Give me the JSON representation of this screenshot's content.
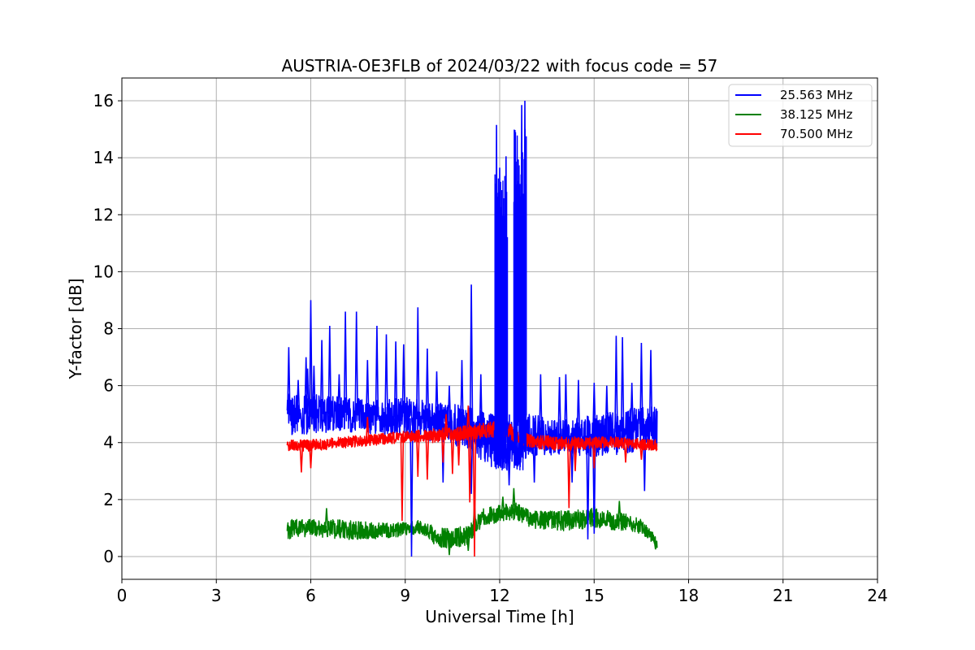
{
  "chart_data": {
    "type": "line",
    "title": "AUSTRIA-OE3FLB of 2024/03/22 with focus code = 57",
    "xlabel": "Universal Time [h]",
    "ylabel": "Y-factor [dB]",
    "xlim": [
      0,
      24
    ],
    "ylim": [
      -0.8,
      16.8
    ],
    "xticks": [
      0,
      3,
      6,
      9,
      12,
      15,
      18,
      21,
      24
    ],
    "yticks": [
      0,
      2,
      4,
      6,
      8,
      10,
      12,
      14,
      16
    ],
    "grid": true,
    "legend_position": "top-right",
    "series": [
      {
        "name": "25.563 MHz",
        "color": "#0000ff",
        "x_range": [
          5.25,
          17.0
        ],
        "band": [
          [
            5.25,
            4.2,
            5.8
          ],
          [
            6,
            4.3,
            5.7
          ],
          [
            7,
            4.4,
            5.6
          ],
          [
            8,
            4.3,
            5.5
          ],
          [
            9,
            4.2,
            5.6
          ],
          [
            10,
            4.0,
            5.4
          ],
          [
            11,
            3.8,
            5.3
          ],
          [
            11.8,
            3.0,
            5.0
          ],
          [
            12.5,
            3.0,
            5.0
          ],
          [
            13,
            3.5,
            5.0
          ],
          [
            14,
            3.6,
            4.8
          ],
          [
            15,
            3.5,
            5.0
          ],
          [
            16,
            3.6,
            5.2
          ],
          [
            17,
            3.8,
            5.3
          ]
        ],
        "spikes": [
          [
            5.3,
            7.35
          ],
          [
            5.6,
            6.2
          ],
          [
            5.85,
            7.0
          ],
          [
            5.9,
            6.6
          ],
          [
            6.0,
            9.0
          ],
          [
            6.1,
            6.7
          ],
          [
            6.35,
            7.6
          ],
          [
            6.6,
            8.1
          ],
          [
            6.9,
            6.4
          ],
          [
            7.1,
            8.6
          ],
          [
            7.45,
            8.6
          ],
          [
            7.8,
            6.9
          ],
          [
            8.1,
            8.1
          ],
          [
            8.4,
            7.8
          ],
          [
            8.7,
            7.55
          ],
          [
            8.95,
            7.45
          ],
          [
            9.4,
            8.75
          ],
          [
            9.7,
            7.3
          ],
          [
            10.0,
            6.5
          ],
          [
            10.4,
            6.0
          ],
          [
            10.8,
            6.9
          ],
          [
            11.1,
            9.55
          ],
          [
            11.4,
            6.4
          ],
          [
            11.9,
            15.15
          ],
          [
            12.0,
            13.65
          ],
          [
            12.2,
            14.05
          ],
          [
            12.5,
            14.9
          ],
          [
            12.7,
            15.85
          ],
          [
            12.8,
            16.0
          ],
          [
            13.3,
            6.4
          ],
          [
            13.9,
            6.3
          ],
          [
            14.1,
            6.4
          ],
          [
            14.5,
            6.2
          ],
          [
            15.0,
            6.1
          ],
          [
            15.4,
            6.0
          ],
          [
            15.7,
            7.75
          ],
          [
            15.9,
            7.7
          ],
          [
            16.2,
            6.1
          ],
          [
            16.5,
            7.5
          ],
          [
            16.8,
            7.25
          ]
        ],
        "dips": [
          [
            9.2,
            0.0
          ],
          [
            10.2,
            2.6
          ],
          [
            11.1,
            2.2
          ],
          [
            12.3,
            2.5
          ],
          [
            13.1,
            2.6
          ],
          [
            14.3,
            2.6
          ],
          [
            14.8,
            0.6
          ],
          [
            15.0,
            0.8
          ],
          [
            16.6,
            2.3
          ]
        ]
      },
      {
        "name": "38.125 MHz",
        "color": "#008000",
        "x_range": [
          5.25,
          17.0
        ],
        "band": [
          [
            5.25,
            0.6,
            1.3
          ],
          [
            6,
            0.7,
            1.3
          ],
          [
            7,
            0.6,
            1.3
          ],
          [
            8,
            0.6,
            1.2
          ],
          [
            9,
            0.7,
            1.2
          ],
          [
            9.5,
            0.8,
            1.3
          ],
          [
            10,
            0.3,
            1.0
          ],
          [
            10.5,
            0.3,
            1.0
          ],
          [
            11,
            0.4,
            1.1
          ],
          [
            11.5,
            1.1,
            1.7
          ],
          [
            12,
            1.2,
            1.8
          ],
          [
            12.5,
            1.3,
            1.9
          ],
          [
            13,
            1.0,
            1.6
          ],
          [
            14,
            0.9,
            1.6
          ],
          [
            15,
            1.0,
            1.7
          ],
          [
            16,
            0.9,
            1.5
          ],
          [
            16.5,
            0.8,
            1.3
          ],
          [
            17,
            0.3,
            0.7
          ]
        ],
        "spikes": [
          [
            6.5,
            1.7
          ],
          [
            11.2,
            1.85
          ],
          [
            12.1,
            2.1
          ],
          [
            12.45,
            2.4
          ],
          [
            15.0,
            1.95
          ],
          [
            15.8,
            1.95
          ]
        ],
        "dips": [
          [
            10.4,
            0.05
          ],
          [
            11.0,
            0.2
          ],
          [
            16.95,
            0.25
          ]
        ]
      },
      {
        "name": "70.500 MHz",
        "color": "#ff0000",
        "x_range": [
          5.25,
          17.0
        ],
        "band": [
          [
            5.25,
            3.7,
            4.1
          ],
          [
            6,
            3.7,
            4.1
          ],
          [
            7,
            3.8,
            4.2
          ],
          [
            8,
            3.9,
            4.3
          ],
          [
            9,
            4.0,
            4.4
          ],
          [
            10,
            4.0,
            4.5
          ],
          [
            11,
            4.1,
            4.6
          ],
          [
            12,
            4.2,
            4.8
          ],
          [
            12.5,
            4.0,
            4.6
          ],
          [
            13,
            3.8,
            4.3
          ],
          [
            14,
            3.7,
            4.2
          ],
          [
            15,
            3.8,
            4.2
          ],
          [
            16,
            3.8,
            4.2
          ],
          [
            17,
            3.7,
            4.1
          ]
        ],
        "spikes": [
          [
            7.8,
            4.9
          ],
          [
            10.3,
            5.0
          ],
          [
            11.0,
            5.3
          ],
          [
            12.1,
            5.0
          ]
        ],
        "dips": [
          [
            5.7,
            2.95
          ],
          [
            6.0,
            3.1
          ],
          [
            8.9,
            1.25
          ],
          [
            9.4,
            2.8
          ],
          [
            9.7,
            2.7
          ],
          [
            10.2,
            3.3
          ],
          [
            10.5,
            2.9
          ],
          [
            10.7,
            3.2
          ],
          [
            11.05,
            1.9
          ],
          [
            11.2,
            0.0
          ],
          [
            14.2,
            1.7
          ],
          [
            14.4,
            3.0
          ],
          [
            15.0,
            3.1
          ],
          [
            16.0,
            3.3
          ],
          [
            16.5,
            3.4
          ]
        ]
      }
    ]
  }
}
